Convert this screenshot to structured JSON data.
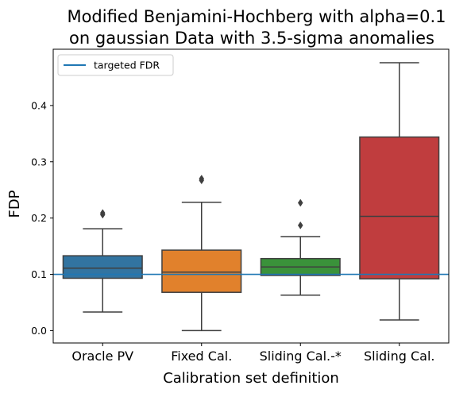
{
  "chart_data": {
    "type": "box",
    "title": [
      "Modified Benjamini-Hochberg with alpha=0.1",
      "on gaussian Data with 3.5-sigma anomalies"
    ],
    "xlabel": "Calibration set definition",
    "ylabel": "FDP",
    "ylim": [
      -0.022,
      0.5
    ],
    "yticks": [
      0.0,
      0.1,
      0.2,
      0.3,
      0.4
    ],
    "ytick_labels": [
      "0.0",
      "0.1",
      "0.2",
      "0.3",
      "0.4"
    ],
    "grid": false,
    "legend": {
      "placement": "top-left",
      "entries": [
        {
          "label": "targeted FDR",
          "color": "#1f77b4"
        }
      ]
    },
    "reference_line": {
      "label": "targeted FDR",
      "y": 0.1,
      "color": "#1f77b4"
    },
    "categories": [
      "Oracle PV",
      "Fixed Cal.",
      "Sliding Cal.-*",
      "Sliding Cal."
    ],
    "boxes": [
      {
        "category": "Oracle PV",
        "color": "#3274a1",
        "whisker_low": 0.033,
        "q1": 0.093,
        "median": 0.111,
        "q3": 0.133,
        "whisker_high": 0.181,
        "fliers": [
          0.206,
          0.209
        ]
      },
      {
        "category": "Fixed Cal.",
        "color": "#e1812c",
        "whisker_low": 0.0,
        "q1": 0.068,
        "median": 0.104,
        "q3": 0.143,
        "whisker_high": 0.228,
        "fliers": [
          0.267,
          0.27
        ]
      },
      {
        "category": "Sliding Cal.-*",
        "color": "#3a923a",
        "whisker_low": 0.063,
        "q1": 0.098,
        "median": 0.113,
        "q3": 0.128,
        "whisker_high": 0.167,
        "fliers": [
          0.187,
          0.227
        ]
      },
      {
        "category": "Sliding Cal.",
        "color": "#c03d3e",
        "whisker_low": 0.019,
        "q1": 0.092,
        "median": 0.203,
        "q3": 0.344,
        "whisker_high": 0.476,
        "fliers": []
      }
    ]
  }
}
